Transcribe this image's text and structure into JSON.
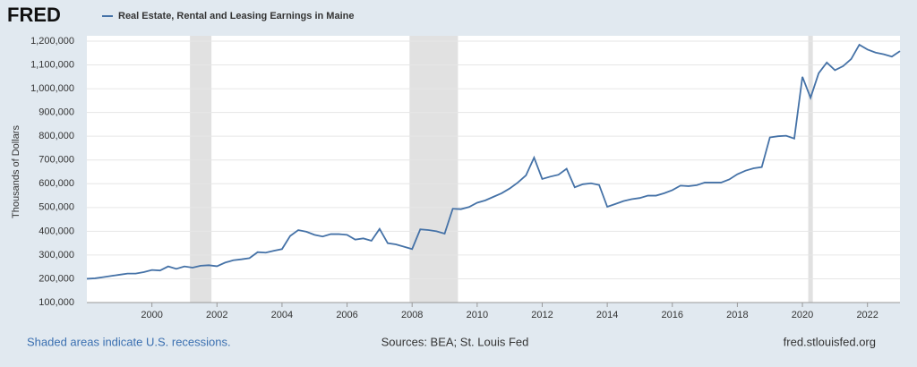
{
  "chart_data": {
    "type": "line",
    "logo": "FRED",
    "ylabel": "Thousands of Dollars",
    "footer_left": "Shaded areas indicate U.S. recessions.",
    "footer_center": "Sources: BEA; St. Louis Fed",
    "footer_right": "fred.stlouisfed.org",
    "xlim": [
      1998,
      2023
    ],
    "xticks": [
      2000,
      2002,
      2004,
      2006,
      2008,
      2010,
      2012,
      2014,
      2016,
      2018,
      2020,
      2022
    ],
    "ylim": [
      100000,
      1200000
    ],
    "yticks": [
      {
        "value": 100000,
        "label": "100,000"
      },
      {
        "value": 200000,
        "label": "200,000"
      },
      {
        "value": 300000,
        "label": "300,000"
      },
      {
        "value": 400000,
        "label": "400,000"
      },
      {
        "value": 500000,
        "label": "500,000"
      },
      {
        "value": 600000,
        "label": "600,000"
      },
      {
        "value": 700000,
        "label": "700,000"
      },
      {
        "value": 800000,
        "label": "800,000"
      },
      {
        "value": 900000,
        "label": "900,000"
      },
      {
        "value": 1000000,
        "label": "1,000,000"
      },
      {
        "value": 1100000,
        "label": "1,100,000"
      },
      {
        "value": 1200000,
        "label": "1,200,000"
      }
    ],
    "grid": true,
    "recessions": [
      {
        "start": 2001.17,
        "end": 2001.83
      },
      {
        "start": 2007.92,
        "end": 2009.41
      },
      {
        "start": 2020.18,
        "end": 2020.32
      }
    ],
    "recession_color": "#e1e1e1",
    "x": [
      1998,
      1998.25,
      1998.5,
      1998.75,
      1999,
      1999.25,
      1999.5,
      1999.75,
      2000,
      2000.25,
      2000.5,
      2000.75,
      2001,
      2001.25,
      2001.5,
      2001.75,
      2002,
      2002.25,
      2002.5,
      2002.75,
      2003,
      2003.25,
      2003.5,
      2003.75,
      2004,
      2004.25,
      2004.5,
      2004.75,
      2005,
      2005.25,
      2005.5,
      2005.75,
      2006,
      2006.25,
      2006.5,
      2006.75,
      2007,
      2007.25,
      2007.5,
      2007.75,
      2008,
      2008.25,
      2008.5,
      2008.75,
      2009,
      2009.25,
      2009.5,
      2009.75,
      2010,
      2010.25,
      2010.5,
      2010.75,
      2011,
      2011.25,
      2011.5,
      2011.75,
      2012,
      2012.25,
      2012.5,
      2012.75,
      2013,
      2013.25,
      2013.5,
      2013.75,
      2014,
      2014.25,
      2014.5,
      2014.75,
      2015,
      2015.25,
      2015.5,
      2015.75,
      2016,
      2016.25,
      2016.5,
      2016.75,
      2017,
      2017.25,
      2017.5,
      2017.75,
      2018,
      2018.25,
      2018.5,
      2018.75,
      2019,
      2019.25,
      2019.5,
      2019.75,
      2020,
      2020.25,
      2020.5,
      2020.75,
      2021,
      2021.25,
      2021.5,
      2021.75,
      2022,
      2022.25,
      2022.5,
      2022.75,
      2023
    ],
    "series": [
      {
        "name": "Real Estate, Rental and Leasing Earnings in Maine",
        "color": "#4572a7",
        "values": [
          200000,
          202000,
          207000,
          212000,
          217000,
          222000,
          222000,
          228000,
          237000,
          235000,
          252000,
          242000,
          252000,
          247000,
          255000,
          257000,
          253000,
          268000,
          278000,
          282000,
          287000,
          312000,
          310000,
          318000,
          325000,
          380000,
          405000,
          398000,
          385000,
          378000,
          388000,
          388000,
          385000,
          365000,
          370000,
          360000,
          410000,
          350000,
          345000,
          335000,
          325000,
          408000,
          405000,
          400000,
          390000,
          495000,
          493000,
          502000,
          520000,
          530000,
          545000,
          560000,
          580000,
          605000,
          635000,
          710000,
          620000,
          630000,
          638000,
          663000,
          585000,
          598000,
          602000,
          595000,
          503000,
          515000,
          527000,
          535000,
          540000,
          550000,
          550000,
          560000,
          573000,
          592000,
          590000,
          594000,
          605000,
          605000,
          605000,
          618000,
          640000,
          655000,
          665000,
          670000,
          795000,
          800000,
          802000,
          790000,
          1050000,
          962000,
          1065000,
          1110000,
          1078000,
          1095000,
          1125000,
          1185000,
          1165000,
          1152000,
          1145000,
          1135000,
          1158000
        ]
      }
    ]
  }
}
